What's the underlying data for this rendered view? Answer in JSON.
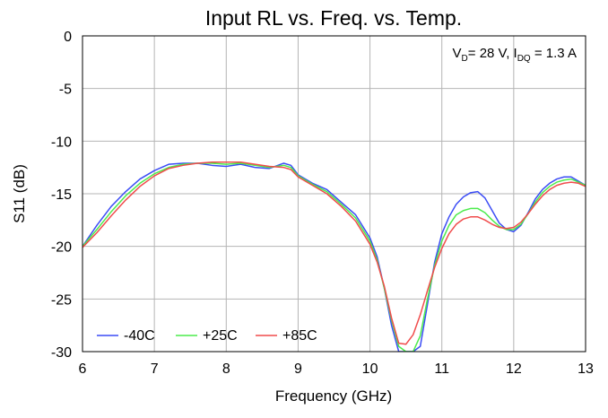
{
  "chart_data": {
    "type": "line",
    "title": "Input RL vs. Freq. vs. Temp.",
    "xlabel": "Frequency (GHz)",
    "ylabel": "S11 (dB)",
    "xlim": [
      6,
      13
    ],
    "ylim": [
      -30,
      0
    ],
    "x_ticks": [
      "6",
      "7",
      "8",
      "9",
      "10",
      "11",
      "12",
      "13"
    ],
    "y_ticks": [
      "0",
      "-5",
      "-10",
      "-15",
      "-20",
      "-25",
      "-30"
    ],
    "grid": true,
    "legend_position": "bottom-left",
    "annotation": {
      "parts": [
        "V",
        "D",
        "= 28 V, I",
        "DQ",
        " = 1.3 A"
      ],
      "position": "top-right"
    },
    "series": [
      {
        "name": "-40C",
        "color": "#3b4cf5",
        "points": [
          [
            6.0,
            -20.0
          ],
          [
            6.2,
            -18.0
          ],
          [
            6.4,
            -16.2
          ],
          [
            6.6,
            -14.8
          ],
          [
            6.8,
            -13.6
          ],
          [
            7.0,
            -12.8
          ],
          [
            7.2,
            -12.2
          ],
          [
            7.4,
            -12.1
          ],
          [
            7.6,
            -12.1
          ],
          [
            7.8,
            -12.3
          ],
          [
            8.0,
            -12.4
          ],
          [
            8.2,
            -12.2
          ],
          [
            8.4,
            -12.5
          ],
          [
            8.6,
            -12.6
          ],
          [
            8.8,
            -12.1
          ],
          [
            8.9,
            -12.3
          ],
          [
            9.0,
            -13.2
          ],
          [
            9.2,
            -14.0
          ],
          [
            9.4,
            -14.6
          ],
          [
            9.6,
            -15.8
          ],
          [
            9.8,
            -17.0
          ],
          [
            10.0,
            -19.2
          ],
          [
            10.1,
            -21.0
          ],
          [
            10.2,
            -24.0
          ],
          [
            10.3,
            -27.5
          ],
          [
            10.4,
            -30.0
          ],
          [
            10.5,
            -30.0
          ],
          [
            10.6,
            -30.0
          ],
          [
            10.7,
            -29.5
          ],
          [
            10.8,
            -25.5
          ],
          [
            10.9,
            -21.5
          ],
          [
            11.0,
            -18.8
          ],
          [
            11.1,
            -17.2
          ],
          [
            11.2,
            -16.0
          ],
          [
            11.3,
            -15.3
          ],
          [
            11.4,
            -14.9
          ],
          [
            11.5,
            -14.8
          ],
          [
            11.6,
            -15.4
          ],
          [
            11.7,
            -16.6
          ],
          [
            11.8,
            -17.8
          ],
          [
            11.9,
            -18.4
          ],
          [
            12.0,
            -18.6
          ],
          [
            12.1,
            -18.0
          ],
          [
            12.2,
            -16.8
          ],
          [
            12.3,
            -15.5
          ],
          [
            12.4,
            -14.6
          ],
          [
            12.5,
            -14.0
          ],
          [
            12.6,
            -13.6
          ],
          [
            12.7,
            -13.4
          ],
          [
            12.8,
            -13.4
          ],
          [
            12.9,
            -13.8
          ],
          [
            13.0,
            -14.2
          ]
        ]
      },
      {
        "name": "+25C",
        "color": "#4ceb4c",
        "points": [
          [
            6.0,
            -20.0
          ],
          [
            6.2,
            -18.4
          ],
          [
            6.4,
            -16.7
          ],
          [
            6.6,
            -15.2
          ],
          [
            6.8,
            -14.0
          ],
          [
            7.0,
            -13.1
          ],
          [
            7.2,
            -12.5
          ],
          [
            7.4,
            -12.2
          ],
          [
            7.6,
            -12.1
          ],
          [
            7.8,
            -12.1
          ],
          [
            8.0,
            -12.2
          ],
          [
            8.2,
            -12.1
          ],
          [
            8.4,
            -12.3
          ],
          [
            8.6,
            -12.5
          ],
          [
            8.8,
            -12.3
          ],
          [
            8.9,
            -12.5
          ],
          [
            9.0,
            -13.3
          ],
          [
            9.2,
            -14.1
          ],
          [
            9.4,
            -14.8
          ],
          [
            9.6,
            -16.0
          ],
          [
            9.8,
            -17.3
          ],
          [
            10.0,
            -19.5
          ],
          [
            10.1,
            -21.3
          ],
          [
            10.2,
            -24.0
          ],
          [
            10.3,
            -27.0
          ],
          [
            10.4,
            -29.5
          ],
          [
            10.5,
            -30.0
          ],
          [
            10.6,
            -30.0
          ],
          [
            10.7,
            -28.5
          ],
          [
            10.8,
            -25.0
          ],
          [
            10.9,
            -21.8
          ],
          [
            11.0,
            -19.5
          ],
          [
            11.1,
            -18.0
          ],
          [
            11.2,
            -17.0
          ],
          [
            11.3,
            -16.6
          ],
          [
            11.4,
            -16.4
          ],
          [
            11.5,
            -16.4
          ],
          [
            11.6,
            -16.8
          ],
          [
            11.7,
            -17.5
          ],
          [
            11.8,
            -18.1
          ],
          [
            11.9,
            -18.4
          ],
          [
            12.0,
            -18.4
          ],
          [
            12.1,
            -17.9
          ],
          [
            12.2,
            -16.9
          ],
          [
            12.3,
            -15.8
          ],
          [
            12.4,
            -14.9
          ],
          [
            12.5,
            -14.3
          ],
          [
            12.6,
            -13.9
          ],
          [
            12.7,
            -13.7
          ],
          [
            12.8,
            -13.6
          ],
          [
            12.9,
            -13.9
          ],
          [
            13.0,
            -14.2
          ]
        ]
      },
      {
        "name": "+85C",
        "color": "#f04c4c",
        "points": [
          [
            6.0,
            -20.1
          ],
          [
            6.2,
            -18.7
          ],
          [
            6.4,
            -17.1
          ],
          [
            6.6,
            -15.6
          ],
          [
            6.8,
            -14.3
          ],
          [
            7.0,
            -13.3
          ],
          [
            7.2,
            -12.6
          ],
          [
            7.4,
            -12.3
          ],
          [
            7.6,
            -12.1
          ],
          [
            7.8,
            -12.0
          ],
          [
            8.0,
            -12.0
          ],
          [
            8.2,
            -12.0
          ],
          [
            8.4,
            -12.2
          ],
          [
            8.6,
            -12.4
          ],
          [
            8.8,
            -12.5
          ],
          [
            8.9,
            -12.7
          ],
          [
            9.0,
            -13.4
          ],
          [
            9.2,
            -14.2
          ],
          [
            9.4,
            -15.0
          ],
          [
            9.6,
            -16.2
          ],
          [
            9.8,
            -17.6
          ],
          [
            10.0,
            -19.8
          ],
          [
            10.1,
            -21.5
          ],
          [
            10.2,
            -23.8
          ],
          [
            10.3,
            -26.8
          ],
          [
            10.4,
            -29.2
          ],
          [
            10.5,
            -29.3
          ],
          [
            10.6,
            -28.4
          ],
          [
            10.7,
            -26.5
          ],
          [
            10.8,
            -24.2
          ],
          [
            10.9,
            -22.0
          ],
          [
            11.0,
            -20.2
          ],
          [
            11.1,
            -18.8
          ],
          [
            11.2,
            -17.9
          ],
          [
            11.3,
            -17.4
          ],
          [
            11.4,
            -17.2
          ],
          [
            11.5,
            -17.2
          ],
          [
            11.6,
            -17.5
          ],
          [
            11.7,
            -17.9
          ],
          [
            11.8,
            -18.2
          ],
          [
            11.9,
            -18.3
          ],
          [
            12.0,
            -18.2
          ],
          [
            12.1,
            -17.7
          ],
          [
            12.2,
            -16.9
          ],
          [
            12.3,
            -16.0
          ],
          [
            12.4,
            -15.2
          ],
          [
            12.5,
            -14.6
          ],
          [
            12.6,
            -14.2
          ],
          [
            12.7,
            -14.0
          ],
          [
            12.8,
            -13.9
          ],
          [
            12.9,
            -14.0
          ],
          [
            13.0,
            -14.3
          ]
        ]
      }
    ]
  }
}
